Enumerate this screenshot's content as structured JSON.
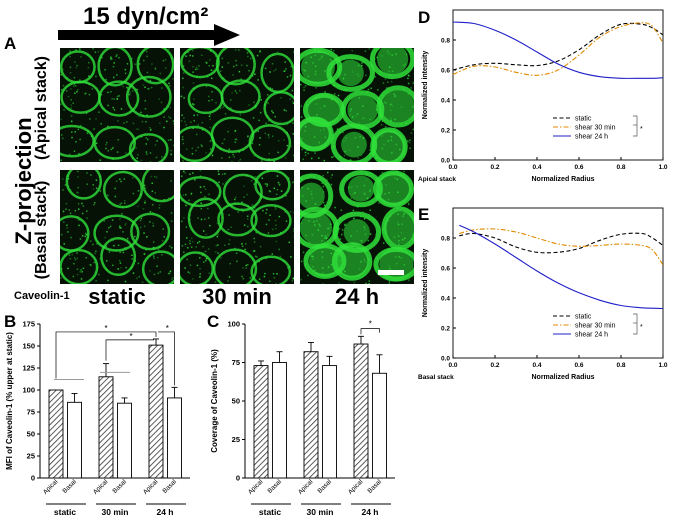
{
  "header": {
    "flow_label": "15 dyn/cm²"
  },
  "panel_a": {
    "letter": "A",
    "side_title": "Z-projection",
    "row_labels": [
      "(Apical stack)",
      "(Basal stack)"
    ],
    "column_labels": [
      "static",
      "30 min",
      "24 h"
    ],
    "stain_label": "Caveolin-1",
    "colors": {
      "stain": "#2fe03a",
      "background": "#061206",
      "scale_bar": "#ffffff"
    }
  },
  "panel_b": {
    "letter": "B",
    "chart_data": {
      "type": "bar",
      "ylabel": "MFI of Caveolin-1 (% upper at static)",
      "ylim": [
        0,
        175
      ],
      "yticks": [
        0,
        25,
        50,
        75,
        100,
        125,
        150,
        175
      ],
      "groups": [
        "static",
        "30 min",
        "24 h"
      ],
      "subcategories": [
        "Apical",
        "Basal"
      ],
      "series": [
        {
          "values": [
            100,
            115,
            151
          ],
          "errors": [
            0,
            15,
            7
          ],
          "fill": "hatched"
        },
        {
          "values": [
            86,
            85,
            91
          ],
          "errors": [
            10,
            6,
            12
          ],
          "fill": "white"
        }
      ],
      "significance": "*"
    }
  },
  "panel_c": {
    "letter": "C",
    "chart_data": {
      "type": "bar",
      "ylabel": "Coverage of Caveolin-1 (%)",
      "ylim": [
        0,
        100
      ],
      "yticks": [
        0,
        25,
        50,
        75,
        100
      ],
      "groups": [
        "static",
        "30 min",
        "24 h"
      ],
      "subcategories": [
        "Apical",
        "Basal"
      ],
      "series": [
        {
          "values": [
            73,
            82,
            87
          ],
          "errors": [
            3,
            6,
            5
          ],
          "fill": "hatched"
        },
        {
          "values": [
            75,
            73,
            68
          ],
          "errors": [
            7,
            6,
            12
          ],
          "fill": "white"
        }
      ],
      "significance": "*"
    }
  },
  "panel_d": {
    "letter": "D",
    "chart_data": {
      "type": "line",
      "xlabel": "Normalized Radius",
      "ylabel": "Normalized intensity",
      "stack_label": "Apical stack",
      "xlim": [
        0,
        1
      ],
      "ylim": [
        0,
        1
      ],
      "xticks": [
        0,
        0.2,
        0.4,
        0.6,
        0.8,
        1
      ],
      "xtick_labels": [
        "0.0",
        "0.2",
        "0.4",
        "0.6",
        "0.8",
        "1.0"
      ],
      "yticks": [
        0,
        0.2,
        0.4,
        0.6,
        0.8
      ],
      "ytick_labels": [
        "0.0",
        "0.2",
        "0.4",
        "0.6",
        "0.8"
      ],
      "legend_position": "bottom-right",
      "significance": "*",
      "x": [
        0,
        0.1,
        0.2,
        0.3,
        0.4,
        0.5,
        0.6,
        0.7,
        0.8,
        0.9,
        0.95,
        1.0
      ],
      "series": [
        {
          "name": "static",
          "color": "#000000",
          "style": "dashed",
          "values": [
            0.6,
            0.635,
            0.645,
            0.635,
            0.63,
            0.66,
            0.735,
            0.835,
            0.905,
            0.905,
            0.88,
            0.835
          ]
        },
        {
          "name": "shear 30 min",
          "color": "#e08a00",
          "style": "dashdot",
          "values": [
            0.57,
            0.625,
            0.62,
            0.585,
            0.565,
            0.6,
            0.7,
            0.82,
            0.89,
            0.915,
            0.89,
            0.78
          ]
        },
        {
          "name": "shear 24 h",
          "color": "#1f1fc8",
          "style": "solid",
          "values": [
            0.92,
            0.91,
            0.865,
            0.8,
            0.72,
            0.64,
            0.585,
            0.555,
            0.545,
            0.545,
            0.545,
            0.548
          ]
        }
      ]
    }
  },
  "panel_e": {
    "letter": "E",
    "chart_data": {
      "type": "line",
      "xlabel": "Normalized Radius",
      "ylabel": "Normalized intensity",
      "stack_label": "Basal stack",
      "xlim": [
        0,
        1
      ],
      "ylim": [
        0,
        1
      ],
      "xticks": [
        0,
        0.2,
        0.4,
        0.6,
        0.8,
        1
      ],
      "xtick_labels": [
        "0.0",
        "0.2",
        "0.4",
        "0.6",
        "0.8",
        "1.0"
      ],
      "yticks": [
        0,
        0.2,
        0.4,
        0.6,
        0.8
      ],
      "ytick_labels": [
        "0.0",
        "0.2",
        "0.4",
        "0.6",
        "0.8"
      ],
      "legend_position": "bottom-right",
      "significance": "*",
      "x": [
        0.03,
        0.1,
        0.2,
        0.3,
        0.4,
        0.5,
        0.6,
        0.7,
        0.8,
        0.9,
        0.95,
        1.0
      ],
      "series": [
        {
          "name": "static",
          "color": "#000000",
          "style": "dashed",
          "values": [
            0.815,
            0.83,
            0.8,
            0.74,
            0.705,
            0.705,
            0.73,
            0.785,
            0.825,
            0.83,
            0.8,
            0.75
          ]
        },
        {
          "name": "shear 30 min",
          "color": "#e08a00",
          "style": "dashdot",
          "values": [
            0.83,
            0.855,
            0.86,
            0.84,
            0.8,
            0.76,
            0.745,
            0.75,
            0.76,
            0.75,
            0.72,
            0.62
          ]
        },
        {
          "name": "shear 24 h",
          "color": "#1f1fc8",
          "style": "solid",
          "values": [
            0.885,
            0.84,
            0.76,
            0.67,
            0.58,
            0.5,
            0.435,
            0.385,
            0.35,
            0.335,
            0.332,
            0.33
          ]
        }
      ]
    }
  }
}
